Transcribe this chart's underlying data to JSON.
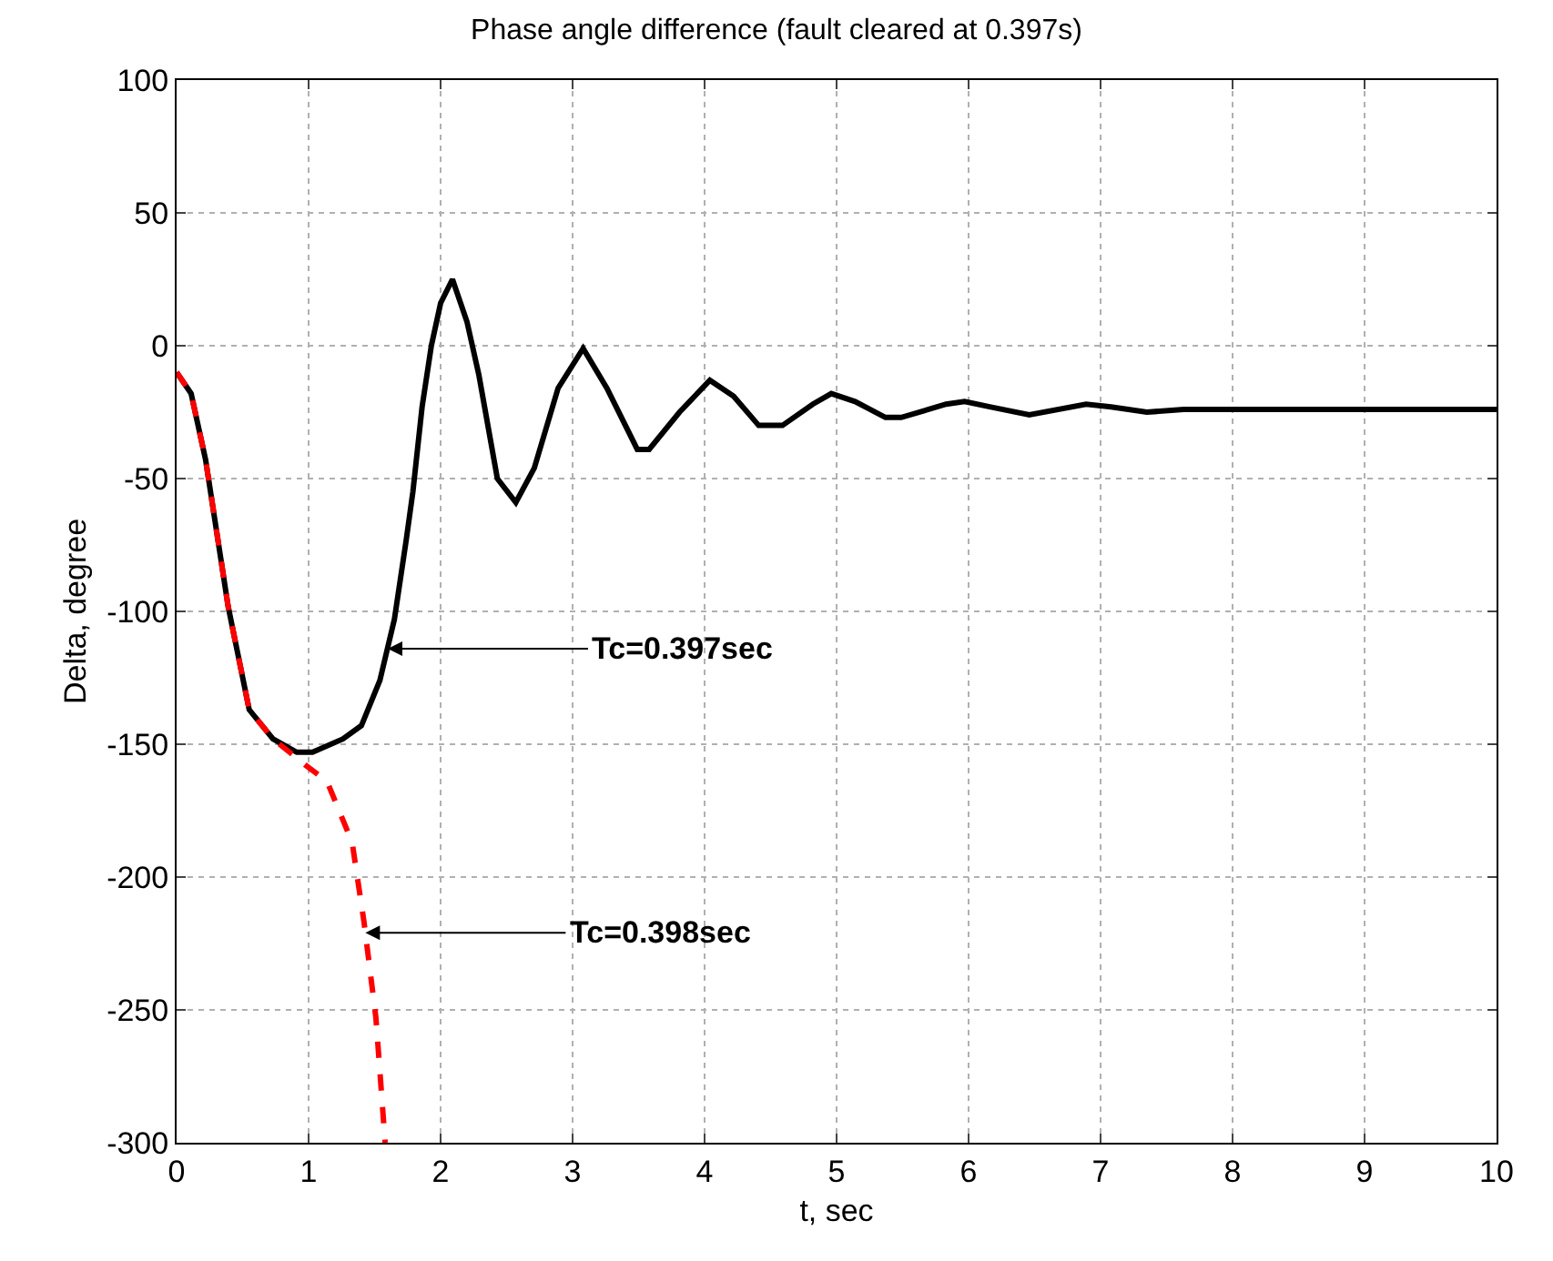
{
  "chart_data": {
    "type": "line",
    "title": "Phase angle difference (fault cleared at 0.397s)",
    "xlabel": "t, sec",
    "ylabel": "Delta, degree",
    "xlim": [
      0,
      10
    ],
    "xticks": [
      0,
      1,
      2,
      3,
      4,
      5,
      6,
      7,
      8,
      9,
      10
    ],
    "ylim": [
      -300,
      100
    ],
    "yticks": [
      -300,
      -250,
      -200,
      -150,
      -100,
      -50,
      0,
      50,
      100
    ],
    "grid": true,
    "series": [
      {
        "color": "#000000",
        "line_style": "solid",
        "x": [
          0,
          0.11,
          0.22,
          0.39,
          0.55,
          0.73,
          0.91,
          1.03,
          1.26,
          1.4,
          1.54,
          1.65,
          1.74,
          1.79,
          1.86,
          1.93,
          2.0,
          2.09,
          2.2,
          2.29,
          2.43,
          2.57,
          2.71,
          2.89,
          3.08,
          3.26,
          3.49,
          3.58,
          3.81,
          4.04,
          4.22,
          4.41,
          4.59,
          4.82,
          4.96,
          5.14,
          5.37,
          5.49,
          5.83,
          5.97,
          6.16,
          6.46,
          6.89,
          7.08,
          7.35,
          7.63,
          8,
          9,
          10
        ],
        "values": [
          -10,
          -18,
          -43,
          -98,
          -137,
          -148,
          -153,
          -153,
          -148,
          -143,
          -126,
          -103,
          -73,
          -55,
          -23,
          0,
          16,
          25,
          9,
          -11,
          -50,
          -59,
          -46,
          -16,
          -1,
          -16,
          -39,
          -39,
          -25,
          -13,
          -19,
          -30,
          -30,
          -22,
          -18,
          -21,
          -27,
          -27,
          -22,
          -21,
          -23,
          -26,
          -22,
          -23,
          -25,
          -24,
          -24,
          -24,
          -24
        ]
      },
      {
        "color": "#ff0000",
        "line_style": "dashed",
        "x": [
          0,
          0.11,
          0.22,
          0.39,
          0.55,
          0.73,
          0.98,
          1.14,
          1.33,
          1.42,
          1.51,
          1.58
        ],
        "values": [
          -10,
          -18,
          -43,
          -98,
          -137,
          -148,
          -158,
          -164,
          -187,
          -217,
          -253,
          -300
        ]
      }
    ],
    "annotations": [
      {
        "text": "Tc=0.397sec",
        "x": 1.6,
        "y": -114
      },
      {
        "text": "Tc=0.398sec",
        "x": 1.43,
        "y": -221
      }
    ]
  }
}
